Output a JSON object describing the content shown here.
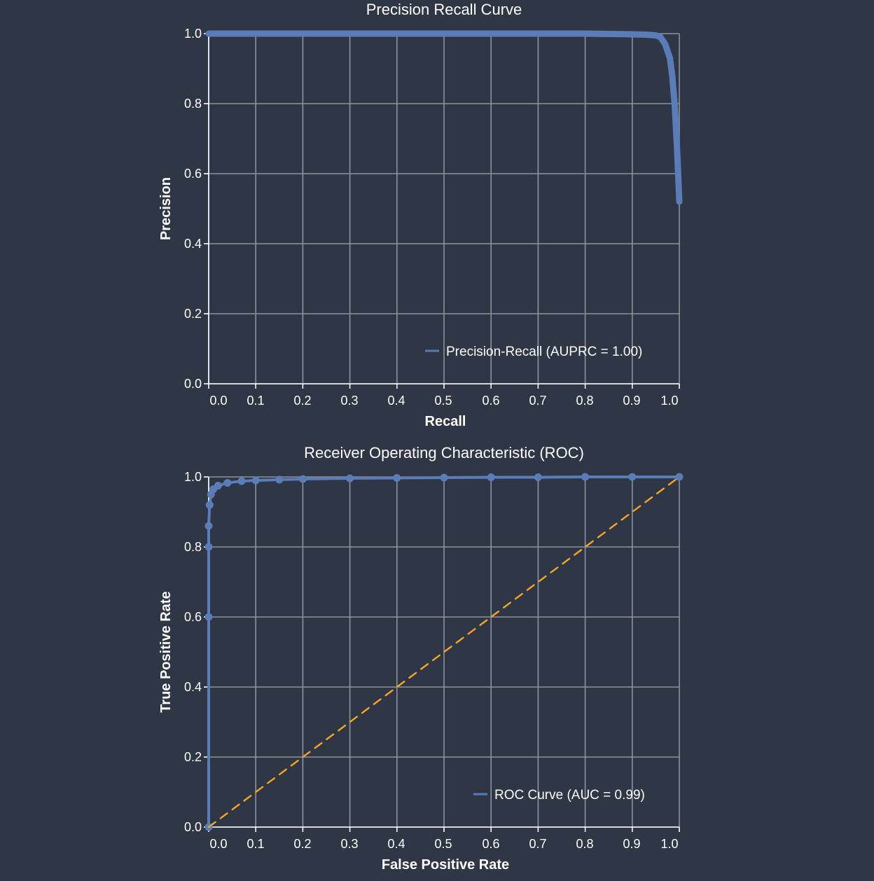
{
  "chart_data": [
    {
      "type": "line",
      "title": "Precision Recall Curve",
      "xlabel": "Recall",
      "ylabel": "Precision",
      "xlim": [
        0,
        1
      ],
      "ylim": [
        0,
        1
      ],
      "x_tick_labels": [
        "0.0",
        "0.1",
        "0.2",
        "0.3",
        "0.4",
        "0.5",
        "0.6",
        "0.7",
        "0.8",
        "0.9",
        "1.0"
      ],
      "y_tick_labels": [
        "0.0",
        "0.2",
        "0.4",
        "0.6",
        "0.8",
        "1.0"
      ],
      "grid": true,
      "legend_position": "bottom-right",
      "series": [
        {
          "name": "Precision-Recall (AUPRC = 1.00)",
          "color": "#5a7db8",
          "x": [
            0.0,
            0.1,
            0.2,
            0.3,
            0.4,
            0.5,
            0.6,
            0.7,
            0.8,
            0.9,
            0.93,
            0.95,
            0.96,
            0.97,
            0.98,
            0.985,
            0.99,
            0.995,
            1.0
          ],
          "y": [
            1.0,
            1.0,
            1.0,
            1.0,
            1.0,
            1.0,
            1.0,
            1.0,
            1.0,
            0.998,
            0.997,
            0.995,
            0.99,
            0.97,
            0.93,
            0.88,
            0.8,
            0.68,
            0.52
          ]
        }
      ]
    },
    {
      "type": "line",
      "title": "Receiver Operating Characteristic (ROC)",
      "xlabel": "False Positive Rate",
      "ylabel": "True Positive Rate",
      "xlim": [
        0,
        1
      ],
      "ylim": [
        0,
        1
      ],
      "x_tick_labels": [
        "0.0",
        "0.1",
        "0.2",
        "0.3",
        "0.4",
        "0.5",
        "0.6",
        "0.7",
        "0.8",
        "0.9",
        "1.0"
      ],
      "y_tick_labels": [
        "0.0",
        "0.2",
        "0.4",
        "0.6",
        "0.8",
        "1.0"
      ],
      "grid": true,
      "legend_position": "bottom-right",
      "series": [
        {
          "name": "ROC Curve (AUC = 0.99)",
          "color": "#5a7db8",
          "x": [
            0.0,
            0.0,
            0.0,
            0.0,
            0.002,
            0.005,
            0.01,
            0.02,
            0.04,
            0.07,
            0.1,
            0.15,
            0.2,
            0.3,
            0.4,
            0.5,
            0.6,
            0.7,
            0.8,
            0.9,
            1.0
          ],
          "y": [
            0.0,
            0.6,
            0.8,
            0.86,
            0.92,
            0.95,
            0.965,
            0.975,
            0.983,
            0.988,
            0.99,
            0.992,
            0.994,
            0.996,
            0.997,
            0.998,
            0.999,
            0.999,
            1.0,
            1.0,
            1.0
          ]
        },
        {
          "name": "",
          "color": "#f5a623",
          "style": "dashed",
          "x": [
            0,
            1
          ],
          "y": [
            0,
            1
          ]
        }
      ]
    }
  ]
}
